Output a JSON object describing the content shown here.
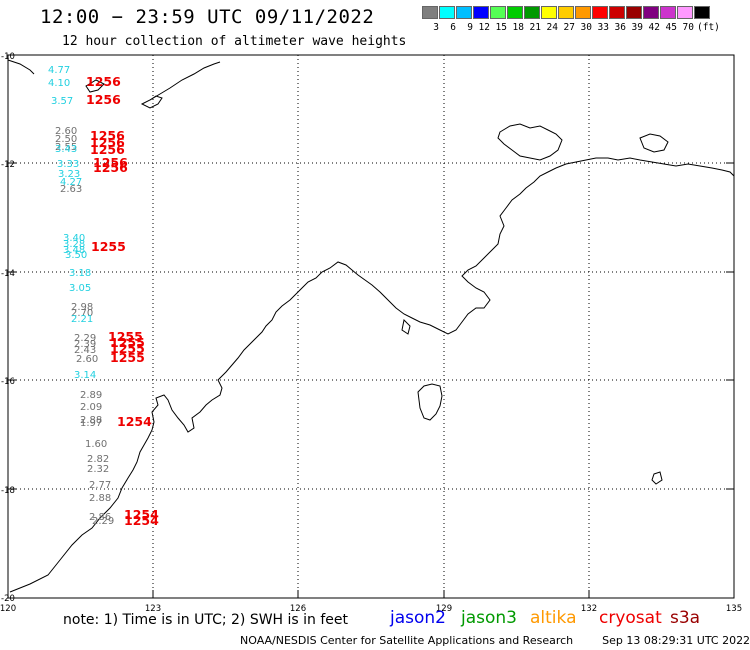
{
  "header": {
    "title": "12:00 − 23:59 UTC 09/11/2022",
    "subtitle": "12 hour collection of altimeter wave heights"
  },
  "colorscale": {
    "colors": [
      "#7f7f7f",
      "#00ffff",
      "#00bfff",
      "#0000ff",
      "#55ff55",
      "#00cc00",
      "#009900",
      "#ffff00",
      "#ffcc00",
      "#ff9900",
      "#ff0000",
      "#cc0000",
      "#990000",
      "#800080",
      "#cc33cc",
      "#ff99ff",
      "#000000"
    ],
    "labels": [
      "3",
      "6",
      "9",
      "12",
      "15",
      "18",
      "21",
      "24",
      "27",
      "30",
      "33",
      "36",
      "39",
      "42",
      "45",
      "70",
      "(ft)"
    ]
  },
  "axes": {
    "lat_labels": [
      "-10",
      "-12",
      "-14",
      "-16",
      "-18",
      "-20"
    ],
    "lon_labels": [
      "120",
      "123",
      "126",
      "129",
      "132",
      "135"
    ]
  },
  "colors": {
    "gray": "#707070",
    "cyan": "#22d0e0",
    "red": "#ee0000",
    "jason2": "#0000ee",
    "jason3": "#009900",
    "altika": "#ff9900",
    "cryosat": "#ee0000",
    "s3a": "#990000"
  },
  "wave_labels": [
    {
      "text": "4.77",
      "color": "cyan"
    },
    {
      "text": "4.10",
      "color": "cyan"
    },
    {
      "text": "1256",
      "color": "red"
    },
    {
      "text": "3.57",
      "color": "cyan"
    },
    {
      "text": "1256",
      "color": "red"
    },
    {
      "text": "2.60",
      "color": "gray"
    },
    {
      "text": "2.50",
      "color": "gray"
    },
    {
      "text": "1256",
      "color": "red"
    },
    {
      "text": "2.55",
      "color": "gray"
    },
    {
      "text": "1256",
      "color": "red"
    },
    {
      "text": "3.43",
      "color": "cyan"
    },
    {
      "text": "1256",
      "color": "red"
    },
    {
      "text": "3.33",
      "color": "cyan"
    },
    {
      "text": "1256",
      "color": "red"
    },
    {
      "text": "3.23",
      "color": "cyan"
    },
    {
      "text": "1256",
      "color": "red"
    },
    {
      "text": "4.27",
      "color": "cyan"
    },
    {
      "text": "2.63",
      "color": "gray"
    },
    {
      "text": "3.40",
      "color": "cyan"
    },
    {
      "text": "3.28",
      "color": "cyan"
    },
    {
      "text": "1255",
      "color": "red"
    },
    {
      "text": "3.48",
      "color": "cyan"
    },
    {
      "text": "3.50",
      "color": "cyan"
    },
    {
      "text": "3.18",
      "color": "cyan"
    },
    {
      "text": "3.05",
      "color": "cyan"
    },
    {
      "text": "2.98",
      "color": "gray"
    },
    {
      "text": "2.70",
      "color": "gray"
    },
    {
      "text": "2.21",
      "color": "cyan"
    },
    {
      "text": "2.29",
      "color": "gray"
    },
    {
      "text": "1255",
      "color": "red"
    },
    {
      "text": "2.39",
      "color": "gray"
    },
    {
      "text": "1255",
      "color": "red"
    },
    {
      "text": "2.43",
      "color": "gray"
    },
    {
      "text": "1255",
      "color": "red"
    },
    {
      "text": "2.60",
      "color": "gray"
    },
    {
      "text": "1255",
      "color": "red"
    },
    {
      "text": "3.14",
      "color": "cyan"
    },
    {
      "text": "2.89",
      "color": "gray"
    },
    {
      "text": "2.09",
      "color": "gray"
    },
    {
      "text": "2.88",
      "color": "gray"
    },
    {
      "text": "1254",
      "color": "red"
    },
    {
      "text": "1.97",
      "color": "gray"
    },
    {
      "text": "1.60",
      "color": "gray"
    },
    {
      "text": "2.82",
      "color": "gray"
    },
    {
      "text": "2.32",
      "color": "gray"
    },
    {
      "text": "2.77",
      "color": "gray"
    },
    {
      "text": "2.88",
      "color": "gray"
    },
    {
      "text": "2.86",
      "color": "gray"
    },
    {
      "text": "1254",
      "color": "red"
    },
    {
      "text": "2.29",
      "color": "gray"
    },
    {
      "text": "1254",
      "color": "red"
    }
  ],
  "footer": {
    "note": "note:  1) Time is in UTC;  2) SWH is in feet",
    "satellites": [
      "jason2",
      "jason3",
      "altika",
      "cryosat",
      "s3a"
    ],
    "credit": "NOAA/NESDIS Center for Satellite Applications and Research",
    "timestamp": "Sep 13 08:29:31 UTC 2022"
  }
}
